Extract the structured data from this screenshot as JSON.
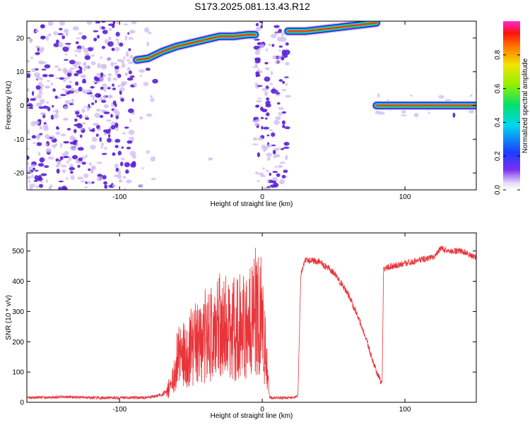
{
  "title": "S173.2025.081.13.43.R12",
  "colors": {
    "snr_line": "#e8353a",
    "frame": "#000000",
    "noise_dark": "#5a1fd6",
    "noise_light": "#cdb8f2"
  },
  "chart_data": [
    {
      "id": "spectrogram",
      "type": "heatmap",
      "title": "S173.2025.081.13.43.R12",
      "xlabel": "Height of straight line (km)",
      "ylabel": "Frequency (Hz)",
      "xlim": [
        -165,
        150
      ],
      "ylim": [
        -25,
        25
      ],
      "xticks": [
        -100,
        0,
        100
      ],
      "yticks": [
        -20,
        -10,
        0,
        10,
        20
      ],
      "colorbar": {
        "label": "Normalized spectral amplitude",
        "range": [
          0,
          1
        ],
        "ticks": [
          0.0,
          0.2,
          0.4,
          0.6,
          0.8
        ],
        "tick_labels": [
          "0.0",
          "0.2",
          "0.4",
          "0.6",
          "0.8"
        ]
      },
      "tone_tracks": [
        {
          "name": "",
          "x": [
            -88,
            -80,
            -70,
            -60,
            -50,
            -40,
            -30,
            -20,
            -10,
            -5
          ],
          "y": [
            13.5,
            14,
            16,
            17.5,
            18.5,
            19.5,
            20.5,
            20.5,
            21,
            21
          ]
        },
        {
          "name": "",
          "x": [
            18,
            30,
            40,
            50,
            60,
            70,
            80
          ],
          "y": [
            22,
            22,
            22.5,
            23,
            23.5,
            24,
            24.5
          ]
        },
        {
          "name": "",
          "x": [
            80,
            100,
            120,
            140,
            150
          ],
          "y": [
            0,
            0,
            0,
            0,
            0
          ]
        }
      ],
      "noise_regions": [
        {
          "x": [
            -165,
            -90
          ],
          "y": [
            -25,
            25
          ],
          "density": "dense"
        },
        {
          "x": [
            -90,
            -75
          ],
          "y": [
            -25,
            25
          ],
          "density": "sparse"
        },
        {
          "x": [
            -5,
            18
          ],
          "y": [
            -25,
            25
          ],
          "density": "dense"
        },
        {
          "x": [
            -45,
            -35
          ],
          "y": [
            -25,
            -10
          ],
          "density": "very sparse"
        },
        {
          "x": [
            80,
            150
          ],
          "y": [
            -3,
            3
          ],
          "density": "faint"
        }
      ]
    },
    {
      "id": "snr",
      "type": "line",
      "xlabel": "Height of straight line (km)",
      "ylabel": "SNR (10 * v/v)",
      "xlim": [
        -165,
        150
      ],
      "ylim": [
        0,
        560
      ],
      "xticks": [
        -100,
        0,
        100
      ],
      "yticks": [
        0,
        100,
        200,
        300,
        400,
        500
      ],
      "series": [
        {
          "name": "",
          "color": "#e8353a",
          "x": [
            -165,
            -140,
            -120,
            -100,
            -80,
            -70,
            -65,
            -60,
            -50,
            -40,
            -30,
            -20,
            -10,
            -5,
            0,
            5,
            10,
            15,
            20,
            25,
            27,
            30,
            40,
            50,
            60,
            70,
            80,
            84,
            85,
            90,
            100,
            110,
            120,
            125,
            130,
            140,
            150
          ],
          "y": [
            15,
            18,
            15,
            15,
            16,
            25,
            50,
            140,
            180,
            220,
            250,
            240,
            260,
            300,
            280,
            15,
            15,
            15,
            15,
            20,
            420,
            470,
            465,
            430,
            360,
            250,
            100,
            60,
            440,
            450,
            460,
            470,
            480,
            510,
            500,
            500,
            480
          ]
        }
      ]
    }
  ]
}
